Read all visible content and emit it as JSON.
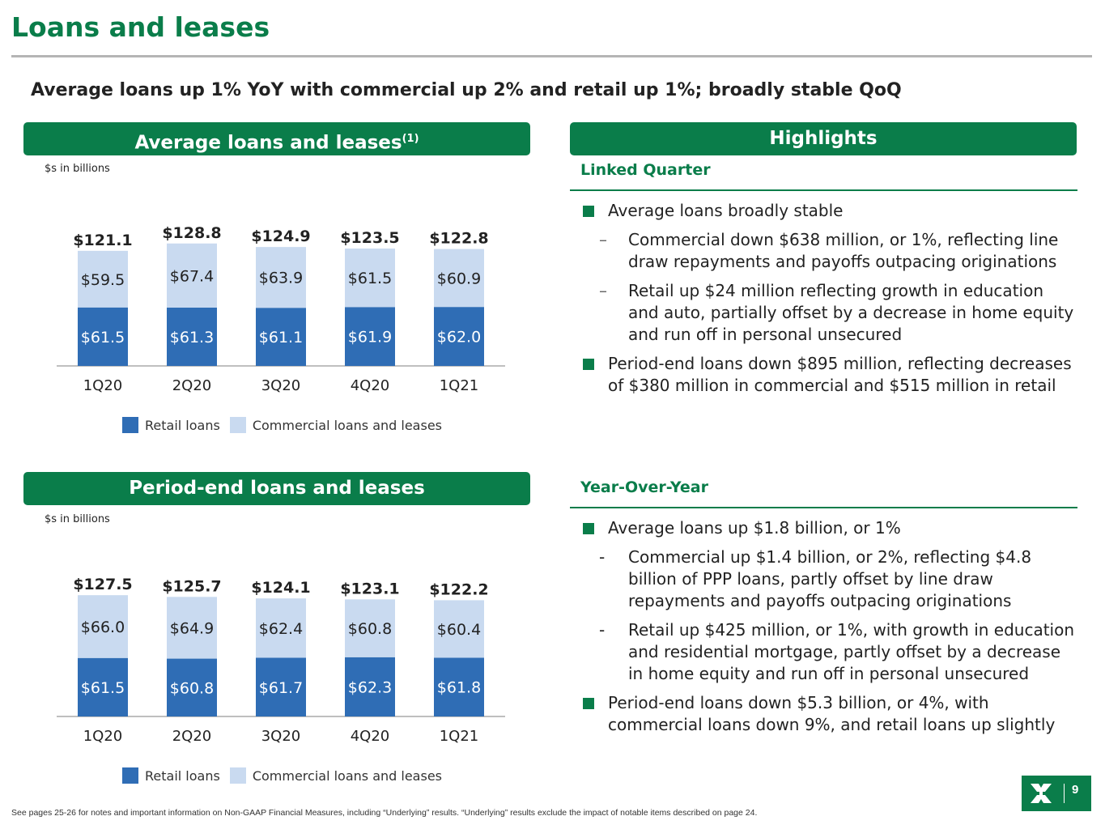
{
  "slide": {
    "title": "Loans and leases",
    "subtitle": "Average loans up 1% YoY with commercial up 2% and retail up 1%; broadly stable QoQ",
    "footnote": "See pages 25-26 for notes and important information on Non-GAAP Financial Measures, including “Underlying” results. “Underlying” results exclude the impact of notable items described on page 24.",
    "page_number": "9",
    "logo_icon": "citizens-logo-icon"
  },
  "colors": {
    "brand_green": "#0a7d4a",
    "retail": "#2f6db5",
    "commercial": "#c9daf0"
  },
  "avg_panel": {
    "header": "Average loans and leases",
    "header_sup": "(1)",
    "units": "$s in billions"
  },
  "pe_panel": {
    "header": "Period-end loans and leases",
    "units": "$s in billions"
  },
  "legend": {
    "retail": "Retail loans",
    "commercial": "Commercial loans and leases"
  },
  "chart_data": [
    {
      "type": "bar",
      "stacked": true,
      "categories": [
        "1Q20",
        "2Q20",
        "3Q20",
        "4Q20",
        "1Q21"
      ],
      "series": [
        {
          "name": "Retail loans",
          "values": [
            61.5,
            61.3,
            61.1,
            61.9,
            62.0
          ],
          "labels": [
            "$61.5",
            "$61.3",
            "$61.1",
            "$61.9",
            "$62.0"
          ],
          "color": "#2f6db5"
        },
        {
          "name": "Commercial loans and leases",
          "values": [
            59.5,
            67.4,
            63.9,
            61.5,
            60.9
          ],
          "labels": [
            "$59.5",
            "$67.4",
            "$63.9",
            "$61.5",
            "$60.9"
          ],
          "color": "#c9daf0"
        }
      ],
      "totals": [
        "$121.1",
        "$128.8",
        "$124.9",
        "$123.5",
        "$122.8"
      ],
      "ylim": [
        0,
        140
      ]
    },
    {
      "type": "bar",
      "stacked": true,
      "categories": [
        "1Q20",
        "2Q20",
        "3Q20",
        "4Q20",
        "1Q21"
      ],
      "series": [
        {
          "name": "Retail loans",
          "values": [
            61.5,
            60.8,
            61.7,
            62.3,
            61.8
          ],
          "labels": [
            "$61.5",
            "$60.8",
            "$61.7",
            "$62.3",
            "$61.8"
          ],
          "color": "#2f6db5"
        },
        {
          "name": "Commercial loans and leases",
          "values": [
            66.0,
            64.9,
            62.4,
            60.8,
            60.4
          ],
          "labels": [
            "$66.0",
            "$64.9",
            "$62.4",
            "$60.8",
            "$60.4"
          ],
          "color": "#c9daf0"
        }
      ],
      "totals": [
        "$127.5",
        "$125.7",
        "$124.1",
        "$123.1",
        "$122.2"
      ],
      "ylim": [
        0,
        140
      ]
    }
  ],
  "highlights": {
    "header": "Highlights",
    "linked_quarter": {
      "title": "Linked Quarter",
      "b1": "Average loans broadly stable",
      "b1a": "Commercial down $638 million, or 1%, reflecting line draw repayments and payoffs outpacing originations",
      "b1b": "Retail up $24 million reflecting growth in education and auto, partially offset by a decrease in home equity and run off in personal unsecured",
      "b2": "Period-end loans down $895 million, reflecting decreases of $380 million in commercial and $515 million in retail"
    },
    "yoy": {
      "title": "Year-Over-Year",
      "b1": "Average loans up $1.8 billion, or 1%",
      "b1a": "Commercial up $1.4 billion, or 2%, reflecting $4.8 billion of PPP loans, partly offset by line draw repayments and payoffs outpacing originations",
      "b1b": "Retail up $425 million, or 1%, with growth in education and residential mortgage, partly offset by a decrease in home equity and  run off in personal unsecured",
      "b2": "Period-end loans down $5.3 billion, or 4%, with commercial loans down 9%, and retail loans up slightly"
    }
  }
}
